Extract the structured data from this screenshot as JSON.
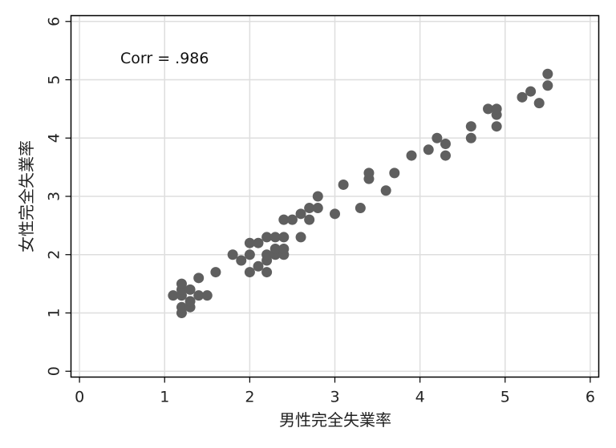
{
  "chart_data": {
    "type": "scatter",
    "xlabel": "男性完全失業率",
    "ylabel": "女性完全失業率",
    "annotation": "Corr = .986",
    "xlim": [
      -0.1,
      6.1
    ],
    "ylim": [
      -0.1,
      6.1
    ],
    "xticks": [
      0,
      1,
      2,
      3,
      4,
      5,
      6
    ],
    "yticks": [
      0,
      1,
      2,
      3,
      4,
      5,
      6
    ],
    "grid": true,
    "colors": {
      "marker": "#5f5f5f",
      "grid": "#dedede",
      "axis": "#000000",
      "background": "#ffffff"
    },
    "points": [
      [
        1.1,
        1.3
      ],
      [
        1.2,
        1.0
      ],
      [
        1.2,
        1.1
      ],
      [
        1.2,
        1.3
      ],
      [
        1.2,
        1.4
      ],
      [
        1.2,
        1.5
      ],
      [
        1.3,
        1.1
      ],
      [
        1.3,
        1.2
      ],
      [
        1.3,
        1.4
      ],
      [
        1.4,
        1.3
      ],
      [
        1.4,
        1.6
      ],
      [
        1.5,
        1.3
      ],
      [
        1.6,
        1.7
      ],
      [
        1.8,
        2.0
      ],
      [
        1.9,
        1.9
      ],
      [
        2.0,
        1.7
      ],
      [
        2.0,
        2.0
      ],
      [
        2.0,
        2.2
      ],
      [
        2.1,
        1.8
      ],
      [
        2.1,
        2.2
      ],
      [
        2.2,
        1.7
      ],
      [
        2.2,
        1.9
      ],
      [
        2.2,
        2.0
      ],
      [
        2.2,
        2.3
      ],
      [
        2.3,
        2.0
      ],
      [
        2.3,
        2.1
      ],
      [
        2.3,
        2.3
      ],
      [
        2.4,
        2.0
      ],
      [
        2.4,
        2.1
      ],
      [
        2.4,
        2.3
      ],
      [
        2.4,
        2.6
      ],
      [
        2.5,
        2.6
      ],
      [
        2.6,
        2.3
      ],
      [
        2.6,
        2.7
      ],
      [
        2.7,
        2.6
      ],
      [
        2.7,
        2.8
      ],
      [
        2.8,
        2.8
      ],
      [
        2.8,
        3.0
      ],
      [
        3.0,
        2.7
      ],
      [
        3.1,
        3.2
      ],
      [
        3.3,
        2.8
      ],
      [
        3.4,
        3.3
      ],
      [
        3.4,
        3.4
      ],
      [
        3.6,
        3.1
      ],
      [
        3.7,
        3.4
      ],
      [
        3.9,
        3.7
      ],
      [
        4.1,
        3.8
      ],
      [
        4.2,
        4.0
      ],
      [
        4.3,
        3.7
      ],
      [
        4.3,
        3.9
      ],
      [
        4.6,
        4.0
      ],
      [
        4.6,
        4.2
      ],
      [
        4.8,
        4.5
      ],
      [
        4.9,
        4.2
      ],
      [
        4.9,
        4.4
      ],
      [
        4.9,
        4.5
      ],
      [
        5.2,
        4.7
      ],
      [
        5.3,
        4.8
      ],
      [
        5.4,
        4.6
      ],
      [
        5.5,
        4.9
      ],
      [
        5.5,
        5.1
      ]
    ]
  }
}
